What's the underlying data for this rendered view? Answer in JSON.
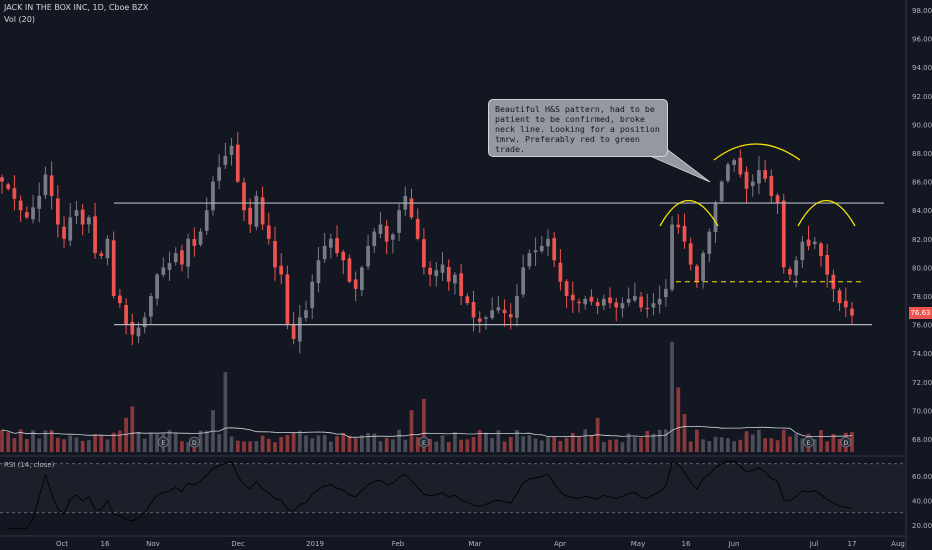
{
  "header": {
    "symbol_line": "JACK IN THE BOX INC, 1D, Cboe BZX",
    "volume_label": "Vol (20)",
    "rsi_label": "RSI (14, close)"
  },
  "annotation": {
    "text": "Beautiful H&S pattern, had to be patient to be confirmed, broke neck line. Looking for a position tmrw. Preferably red to green trade."
  },
  "last_price": "76.63",
  "colors": {
    "background": "#131722",
    "up": "#787b86",
    "down": "#ef5350",
    "resistance": "#b2b5be",
    "neckline": "#f7e300",
    "shoulders": "#f7e300",
    "rsi_line": "#000000"
  },
  "chart_data": {
    "type": "candlestick",
    "price_axis": {
      "ticks": [
        "98.00",
        "96.00",
        "94.00",
        "92.00",
        "90.00",
        "88.00",
        "86.00",
        "84.00",
        "82.00",
        "80.00",
        "78.00",
        "76.00",
        "74.00",
        "72.00",
        "70.00",
        "68.00"
      ],
      "range": [
        67,
        98.5
      ]
    },
    "rsi_axis": {
      "ticks": [
        "60.00",
        "40.00",
        "20.00"
      ],
      "range": [
        16,
        72
      ],
      "bands": [
        70,
        30
      ]
    },
    "time_axis": [
      "Oct",
      "16",
      "Nov",
      "Dec",
      "2019",
      "Feb",
      "Mar",
      "Apr",
      "May",
      "16",
      "Jun",
      "Jul",
      "17",
      "Aug"
    ],
    "levels": {
      "resistance": 84.5,
      "support": 76.0,
      "neckline": 79.0
    },
    "events": [
      {
        "label": "E",
        "date_index": 26
      },
      {
        "label": "D",
        "date_index": 31
      },
      {
        "label": "E",
        "date_index": 68
      },
      {
        "label": "E",
        "date_index": 130
      },
      {
        "label": "D",
        "date_index": 136
      }
    ],
    "close_path": [
      86,
      85.5,
      84.8,
      84,
      83.5,
      84.2,
      85,
      86.5,
      85,
      83,
      82,
      83.5,
      84,
      83,
      83.5,
      81,
      80.8,
      82,
      78,
      77.5,
      76,
      75.3,
      75.8,
      76.5,
      78,
      79.5,
      80,
      80.3,
      81,
      80.2,
      82,
      81.5,
      82.5,
      84,
      86,
      87,
      87.8,
      88.5,
      86,
      84,
      83,
      85,
      83,
      82,
      80,
      79.5,
      76,
      75,
      76.5,
      77,
      79,
      80.5,
      81.5,
      82,
      81,
      80.5,
      79,
      78.5,
      80,
      81.5,
      82.5,
      83,
      81.8,
      82.3,
      84,
      85,
      83.5,
      82,
      80,
      79.5,
      79.8,
      80.2,
      79,
      79.5,
      78,
      77.5,
      76.5,
      76.2,
      76.5,
      77,
      77.2,
      76.8,
      76.5,
      78,
      80,
      81,
      81.2,
      81.5,
      82,
      80.5,
      79,
      78,
      77.7,
      77.5,
      77.8,
      77.6,
      77.3,
      77.8,
      77.5,
      77.2,
      77.5,
      77.8,
      78,
      77.2,
      77.1,
      77.5,
      77.8,
      78.5,
      83,
      82.8,
      81.8,
      80.2,
      79,
      81,
      82.5,
      84.5,
      86,
      87.2,
      87.5,
      86.5,
      85.5,
      86,
      86.8,
      86.2,
      85,
      84.5,
      80,
      79.5,
      80.5,
      81.8,
      81.5,
      81.8,
      80.8,
      79.5,
      78.5,
      77.5,
      77.2,
      76.63
    ]
  }
}
